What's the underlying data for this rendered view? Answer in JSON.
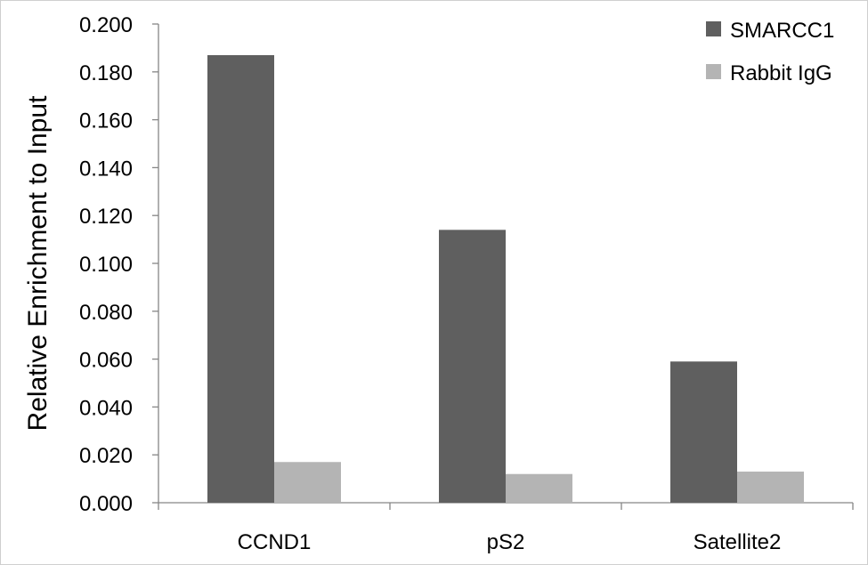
{
  "chart_data": {
    "type": "bar",
    "title": "",
    "xlabel": "",
    "ylabel": "Relative Enrichment to Input",
    "categories": [
      "CCND1",
      "pS2",
      "Satellite2"
    ],
    "series": [
      {
        "name": "SMARCC1",
        "values": [
          0.187,
          0.114,
          0.059
        ],
        "color": "#5f5f5f"
      },
      {
        "name": "Rabbit IgG",
        "values": [
          0.017,
          0.012,
          0.013
        ],
        "color": "#b4b4b4"
      }
    ],
    "ylim": [
      0,
      0.2
    ],
    "yticks": [
      "0.000",
      "0.020",
      "0.040",
      "0.060",
      "0.080",
      "0.100",
      "0.120",
      "0.140",
      "0.160",
      "0.180",
      "0.200"
    ],
    "grid": false,
    "legend_position": "top-right"
  }
}
